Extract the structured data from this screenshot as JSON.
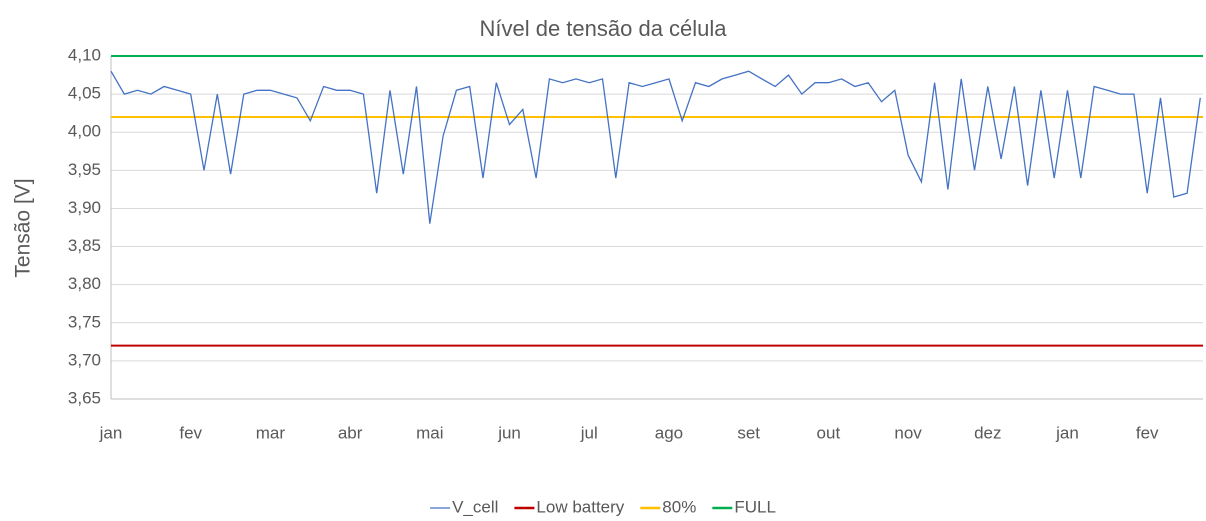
{
  "chart_data": {
    "type": "line",
    "title": "Nível de tensão da célula",
    "y_label": "Tensão [V]",
    "categories": [
      "jan",
      null,
      null,
      null,
      null,
      null,
      "fev",
      null,
      null,
      null,
      null,
      null,
      "mar",
      null,
      null,
      null,
      null,
      null,
      "abr",
      null,
      null,
      null,
      null,
      null,
      "mai",
      null,
      null,
      null,
      null,
      null,
      "jun",
      null,
      null,
      null,
      null,
      null,
      "jul",
      null,
      null,
      null,
      null,
      null,
      "ago",
      null,
      null,
      null,
      null,
      null,
      "set",
      null,
      null,
      null,
      null,
      null,
      "out",
      null,
      null,
      null,
      null,
      null,
      "nov",
      null,
      null,
      null,
      null,
      null,
      "dez",
      null,
      null,
      null,
      null,
      null,
      "jan",
      null,
      null,
      null,
      null,
      null,
      "fev",
      null,
      null,
      null,
      null
    ],
    "series": [
      {
        "name": "V_cell",
        "color": "#4472c4",
        "values": [
          4.08,
          4.05,
          4.055,
          4.05,
          4.06,
          4.055,
          4.05,
          3.95,
          4.05,
          3.945,
          4.05,
          4.055,
          4.055,
          4.05,
          4.045,
          4.015,
          4.06,
          4.055,
          4.055,
          4.05,
          3.92,
          4.055,
          3.945,
          4.06,
          3.88,
          3.995,
          4.055,
          4.06,
          3.94,
          4.065,
          4.01,
          4.03,
          3.94,
          4.07,
          4.065,
          4.07,
          4.065,
          4.07,
          3.94,
          4.065,
          4.06,
          4.065,
          4.07,
          4.015,
          4.065,
          4.06,
          4.07,
          4.075,
          4.08,
          4.07,
          4.06,
          4.075,
          4.05,
          4.065,
          4.065,
          4.07,
          4.06,
          4.065,
          4.04,
          4.055,
          3.97,
          3.935,
          4.065,
          3.925,
          4.07,
          3.95,
          4.06,
          3.965,
          4.06,
          3.93,
          4.055,
          3.94,
          4.055,
          3.94,
          4.06,
          4.055,
          4.05,
          4.05,
          3.92,
          4.045,
          3.915,
          3.92,
          4.045
        ]
      }
    ],
    "hlines": [
      {
        "name": "Low battery",
        "color": "#c00000",
        "value": 3.72
      },
      {
        "name": "80%",
        "color": "#ffc000",
        "value": 4.02
      },
      {
        "name": "FULL",
        "color": "#00b050",
        "value": 4.1
      }
    ],
    "ylim": [
      3.65,
      4.1
    ],
    "yticks": [
      {
        "value": 3.65,
        "label": "3,65"
      },
      {
        "value": 3.7,
        "label": "3,70"
      },
      {
        "value": 3.75,
        "label": "3,75"
      },
      {
        "value": 3.8,
        "label": "3,80"
      },
      {
        "value": 3.85,
        "label": "3,85"
      },
      {
        "value": 3.9,
        "label": "3,90"
      },
      {
        "value": 3.95,
        "label": "3,95"
      },
      {
        "value": 4.0,
        "label": "4,00"
      },
      {
        "value": 4.05,
        "label": "4,05"
      },
      {
        "value": 4.1,
        "label": "4,10"
      }
    ],
    "grid": true,
    "legend": "bottom"
  }
}
